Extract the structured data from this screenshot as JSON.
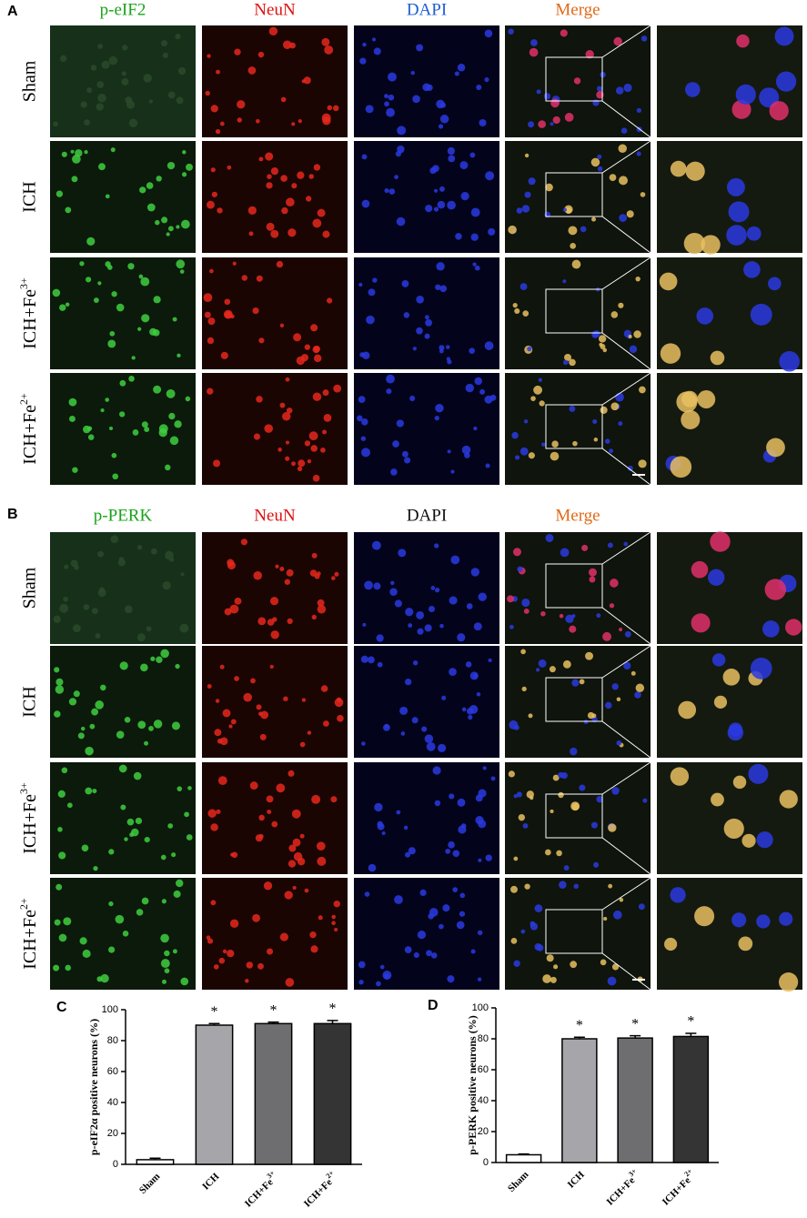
{
  "panel_a": {
    "label": "A",
    "columns": [
      "p-eIF2",
      "NeuN",
      "DAPI",
      "Merge"
    ],
    "rows": [
      "Sham",
      "ICH",
      "ICH+Fe3+",
      "ICH+Fe2+"
    ]
  },
  "panel_b": {
    "label": "B",
    "columns": [
      "p-PERK",
      "NeuN",
      "DAPI",
      "Merge"
    ],
    "rows": [
      "Sham",
      "ICH",
      "ICH+Fe3+",
      "ICH+Fe2+"
    ]
  },
  "chart_data": [
    {
      "type": "bar",
      "label": "C",
      "ylabel": "p-eIF2α positive neurons (%)",
      "categories": [
        "Sham",
        "ICH",
        "ICH+Fe3+",
        "ICH+Fe2+"
      ],
      "values": [
        3,
        90,
        91,
        91
      ],
      "errors": [
        1,
        1,
        1,
        2
      ],
      "colors": [
        "#ffffff",
        "#a6a6aa",
        "#6e6e70",
        "#343434"
      ],
      "annotations": [
        null,
        "*",
        "*",
        "*"
      ],
      "ylim": [
        0,
        100
      ],
      "yticks": [
        0,
        20,
        40,
        60,
        80,
        100
      ]
    },
    {
      "type": "bar",
      "label": "D",
      "ylabel": "p-PERK positive neurons (%)",
      "categories": [
        "Sham",
        "ICH",
        "ICH+Fe3+",
        "ICH+Fe2+"
      ],
      "values": [
        5,
        80,
        80.5,
        81.5
      ],
      "errors": [
        0.5,
        1,
        1.5,
        2
      ],
      "colors": [
        "#ffffff",
        "#a6a6aa",
        "#6e6e70",
        "#343434"
      ],
      "annotations": [
        null,
        "*",
        "*",
        "*"
      ],
      "ylim": [
        0,
        100
      ],
      "yticks": [
        0,
        20,
        40,
        60,
        80,
        100
      ]
    }
  ]
}
